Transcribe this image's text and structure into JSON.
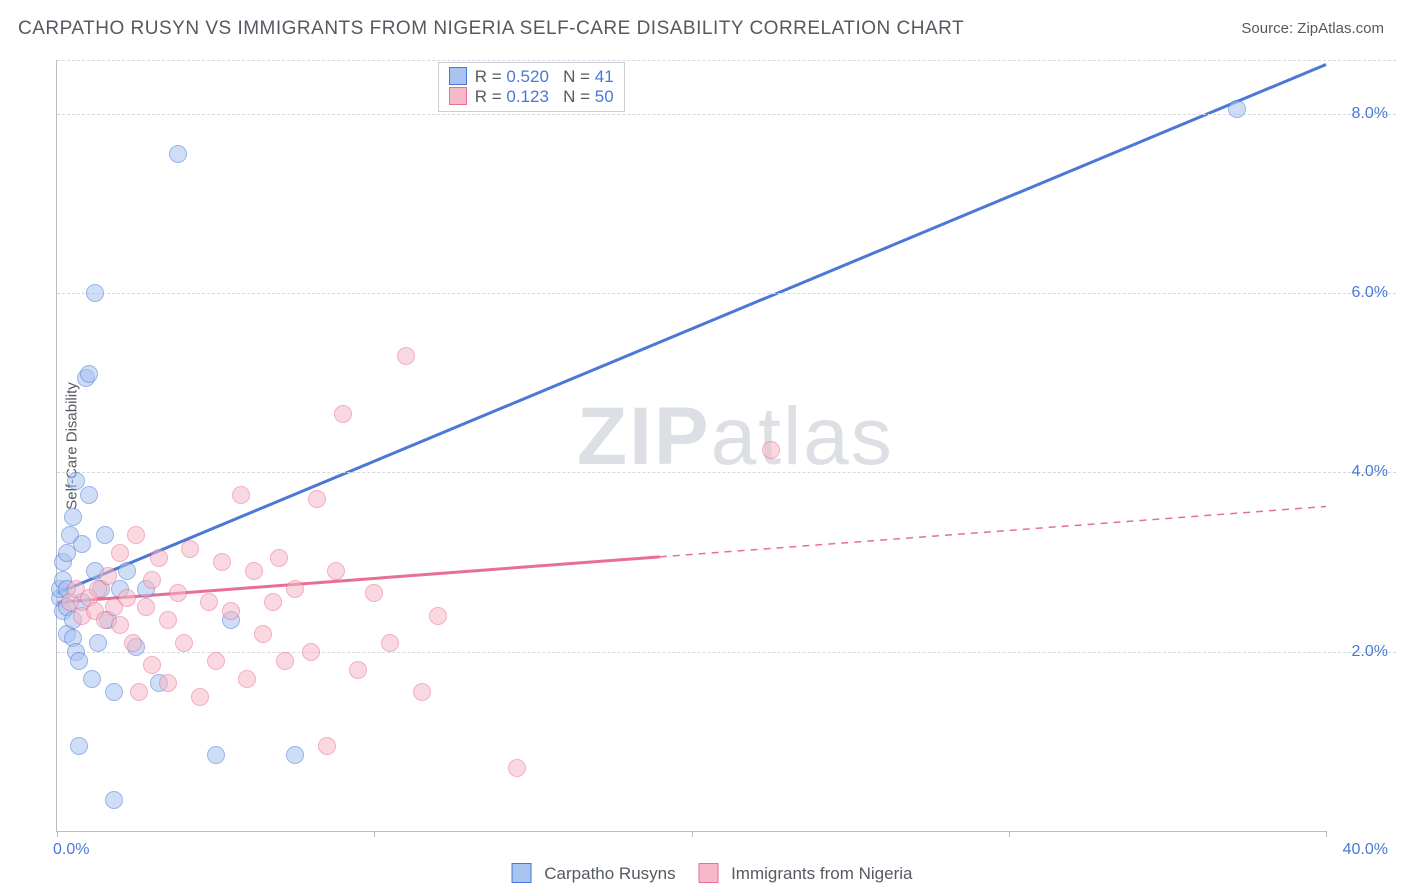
{
  "title": "CARPATHO RUSYN VS IMMIGRANTS FROM NIGERIA SELF-CARE DISABILITY CORRELATION CHART",
  "source_prefix": "Source: ",
  "source_name": "ZipAtlas.com",
  "ylabel": "Self-Care Disability",
  "watermark_bold": "ZIP",
  "watermark_rest": "atlas",
  "chart": {
    "type": "scatter",
    "xlim": [
      0,
      40
    ],
    "ylim": [
      0,
      8.6
    ],
    "x_ticks": [
      0,
      10,
      20,
      30,
      40
    ],
    "x_tick_labels": {
      "0": "0.0%",
      "40": "40.0%"
    },
    "y_ticks": [
      2,
      4,
      6,
      8
    ],
    "y_tick_labels": [
      "2.0%",
      "4.0%",
      "6.0%",
      "8.0%"
    ],
    "grid_color": "#d5d9de",
    "axis_color": "#b7bdc6",
    "tick_label_color": "#4a78d6",
    "marker_radius": 9,
    "marker_opacity": 0.55,
    "series": [
      {
        "key": "carpatho",
        "label": "Carpatho Rusyns",
        "R": "0.520",
        "N": "41",
        "color_stroke": "#4a78d6",
        "color_fill": "#a8c3ef",
        "line": {
          "x1": 0,
          "y1": 2.65,
          "x2": 40,
          "y2": 8.55,
          "width": 3,
          "dash_after_x": null
        },
        "points": [
          [
            0.1,
            2.6
          ],
          [
            0.1,
            2.7
          ],
          [
            0.2,
            2.45
          ],
          [
            0.2,
            2.8
          ],
          [
            0.2,
            3.0
          ],
          [
            0.3,
            2.2
          ],
          [
            0.3,
            2.5
          ],
          [
            0.3,
            2.7
          ],
          [
            0.3,
            3.1
          ],
          [
            0.4,
            3.3
          ],
          [
            0.5,
            2.15
          ],
          [
            0.5,
            2.35
          ],
          [
            0.5,
            3.5
          ],
          [
            0.6,
            2.0
          ],
          [
            0.6,
            3.9
          ],
          [
            0.7,
            1.9
          ],
          [
            0.8,
            2.55
          ],
          [
            0.8,
            3.2
          ],
          [
            0.9,
            5.05
          ],
          [
            1.0,
            5.1
          ],
          [
            1.0,
            3.75
          ],
          [
            1.1,
            1.7
          ],
          [
            1.2,
            2.9
          ],
          [
            1.2,
            6.0
          ],
          [
            1.3,
            2.1
          ],
          [
            1.4,
            2.7
          ],
          [
            1.5,
            3.3
          ],
          [
            1.6,
            2.35
          ],
          [
            1.8,
            1.55
          ],
          [
            1.8,
            0.35
          ],
          [
            2.0,
            2.7
          ],
          [
            2.2,
            2.9
          ],
          [
            2.5,
            2.05
          ],
          [
            2.8,
            2.7
          ],
          [
            3.2,
            1.65
          ],
          [
            3.8,
            7.55
          ],
          [
            5.0,
            0.85
          ],
          [
            5.5,
            2.35
          ],
          [
            7.5,
            0.85
          ],
          [
            0.7,
            0.95
          ],
          [
            37.2,
            8.05
          ]
        ]
      },
      {
        "key": "nigeria",
        "label": "Immigrants from Nigeria",
        "R": "0.123",
        "N": "50",
        "color_stroke": "#e86f91",
        "color_fill": "#f6b9c9",
        "line": {
          "x1": 0,
          "y1": 2.55,
          "x2": 40,
          "y2": 3.62,
          "width": 3,
          "dash_after_x": 19
        },
        "points": [
          [
            0.4,
            2.55
          ],
          [
            0.6,
            2.7
          ],
          [
            0.8,
            2.4
          ],
          [
            1.0,
            2.6
          ],
          [
            1.2,
            2.45
          ],
          [
            1.3,
            2.7
          ],
          [
            1.5,
            2.35
          ],
          [
            1.6,
            2.85
          ],
          [
            1.8,
            2.5
          ],
          [
            2.0,
            2.3
          ],
          [
            2.0,
            3.1
          ],
          [
            2.2,
            2.6
          ],
          [
            2.4,
            2.1
          ],
          [
            2.5,
            3.3
          ],
          [
            2.6,
            1.55
          ],
          [
            2.8,
            2.5
          ],
          [
            3.0,
            2.8
          ],
          [
            3.0,
            1.85
          ],
          [
            3.2,
            3.05
          ],
          [
            3.5,
            2.35
          ],
          [
            3.5,
            1.65
          ],
          [
            3.8,
            2.65
          ],
          [
            4.0,
            2.1
          ],
          [
            4.2,
            3.15
          ],
          [
            4.5,
            1.5
          ],
          [
            4.8,
            2.55
          ],
          [
            5.0,
            1.9
          ],
          [
            5.2,
            3.0
          ],
          [
            5.5,
            2.45
          ],
          [
            5.8,
            3.75
          ],
          [
            6.0,
            1.7
          ],
          [
            6.2,
            2.9
          ],
          [
            6.5,
            2.2
          ],
          [
            6.8,
            2.55
          ],
          [
            7.0,
            3.05
          ],
          [
            7.2,
            1.9
          ],
          [
            7.5,
            2.7
          ],
          [
            8.0,
            2.0
          ],
          [
            8.2,
            3.7
          ],
          [
            8.8,
            2.9
          ],
          [
            9.0,
            4.65
          ],
          [
            9.5,
            1.8
          ],
          [
            10.0,
            2.65
          ],
          [
            10.5,
            2.1
          ],
          [
            11.0,
            5.3
          ],
          [
            11.5,
            1.55
          ],
          [
            12.0,
            2.4
          ],
          [
            14.5,
            0.7
          ],
          [
            22.5,
            4.25
          ],
          [
            8.5,
            0.95
          ]
        ]
      }
    ]
  },
  "statbox": {
    "R_label": "R =",
    "N_label": "N ="
  }
}
